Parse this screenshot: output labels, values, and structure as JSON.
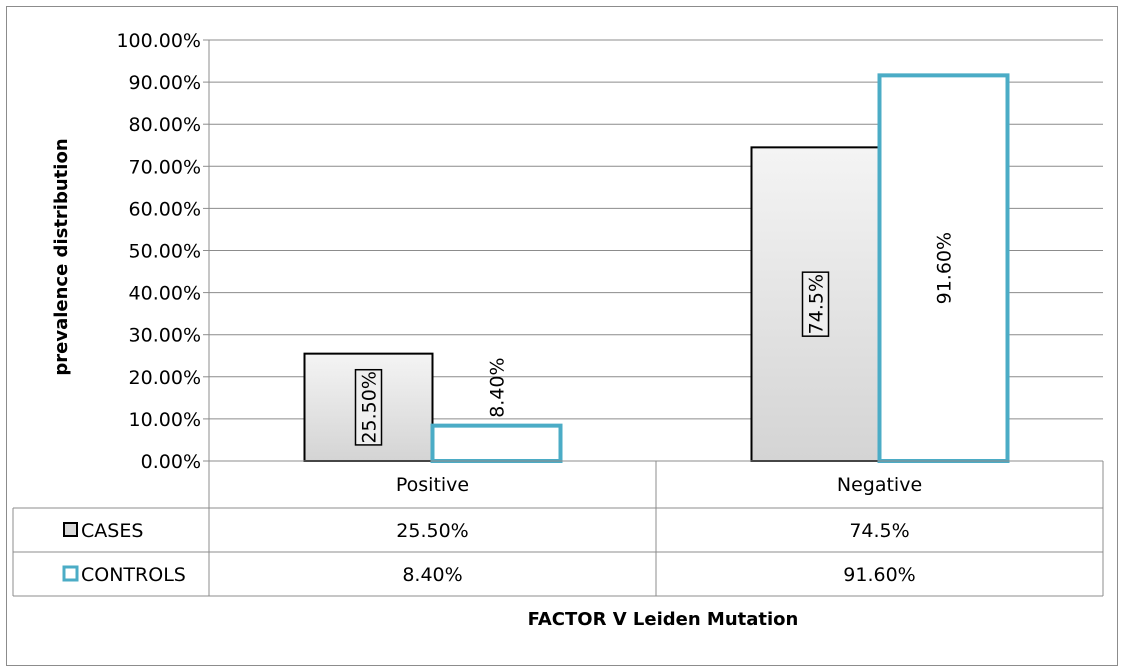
{
  "chart_data": {
    "type": "bar",
    "title": "",
    "xlabel": "FACTOR V Leiden Mutation",
    "ylabel": "prevalence distribution",
    "categories": [
      "Positive",
      "Negative"
    ],
    "ylim": [
      0,
      1.0
    ],
    "yticks": [
      "0.00%",
      "10.00%",
      "20.00%",
      "30.00%",
      "40.00%",
      "50.00%",
      "60.00%",
      "70.00%",
      "80.00%",
      "90.00%",
      "100.00%"
    ],
    "grid": true,
    "legend": "data-table",
    "series": [
      {
        "name": "CASES",
        "values": [
          0.255,
          0.745
        ],
        "data_labels": [
          "25.50%",
          "74.5%"
        ],
        "table_values": [
          "25.50%",
          "74.5%"
        ],
        "fill_color": "#d4d4d4",
        "border_color": "#000000"
      },
      {
        "name": "CONTROLS",
        "values": [
          0.084,
          0.916
        ],
        "data_labels": [
          "8.40%",
          "91.60%"
        ],
        "table_values": [
          "8.40%",
          "91.60%"
        ],
        "fill_color": "#ffffff",
        "border_color": "#4bacc6"
      }
    ]
  }
}
